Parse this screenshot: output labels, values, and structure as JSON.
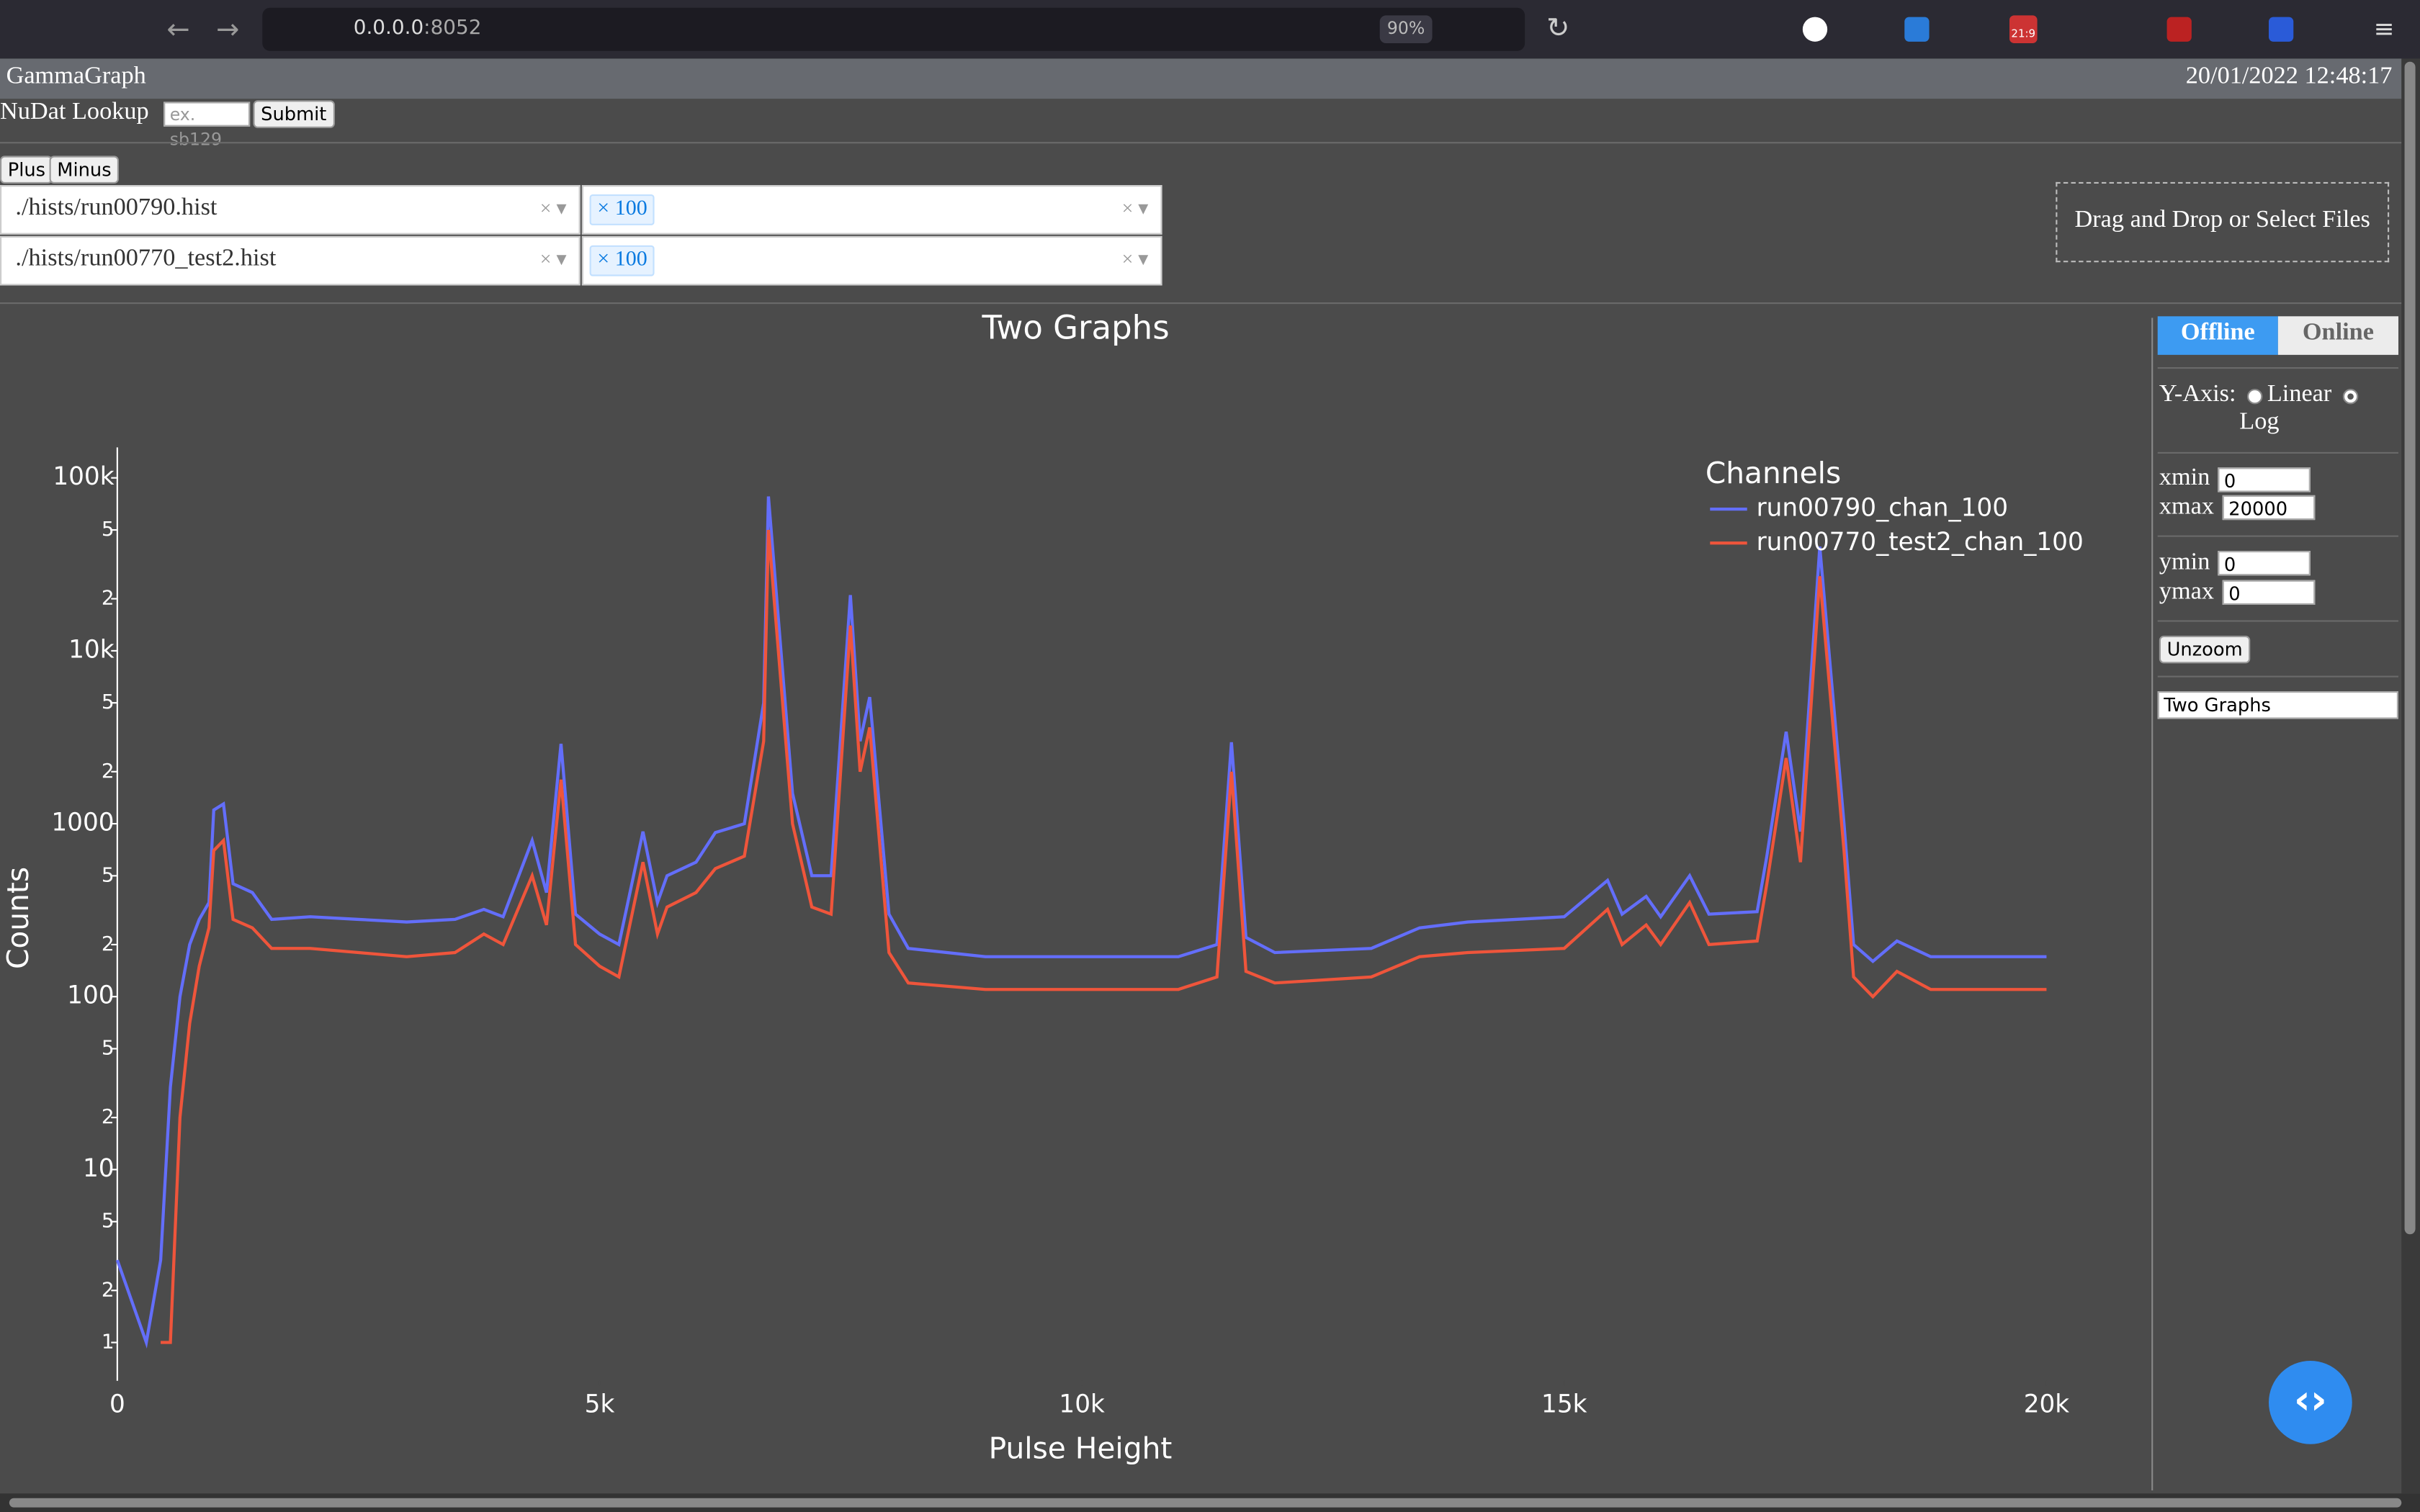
{
  "browser": {
    "url_host": "0.0.0.0",
    "url_port": ":8052",
    "zoom": "90%",
    "badge": "21:9"
  },
  "app": {
    "title": "GammaGraph",
    "datetime": "20/01/2022 12:48:17",
    "nudat_label": "NuDat Lookup",
    "nudat_placeholder": "ex. sb129",
    "submit": "Submit",
    "plus": "Plus",
    "minus": "Minus",
    "files": [
      {
        "path": "./hists/run00790.hist",
        "channel": "100"
      },
      {
        "path": "./hists/run00770_test2.hist",
        "channel": "100"
      }
    ],
    "dropzone": "Drag and Drop or Select Files"
  },
  "sidebar": {
    "tabs": [
      "Offline",
      "Online"
    ],
    "yaxis_label": "Y-Axis:",
    "yaxis_options": [
      "Linear",
      "Log"
    ],
    "xmin_label": "xmin",
    "xmin": "0",
    "xmax_label": "xmax",
    "xmax": "20000",
    "ymin_label": "ymin",
    "ymin": "0",
    "ymax_label": "ymax",
    "ymax": "0",
    "unzoom": "Unzoom",
    "graph_title": "Two Graphs"
  },
  "chart_data": {
    "type": "line",
    "title": "Two Graphs",
    "x_label": "Pulse Height",
    "y_label": "Counts",
    "log_y": true,
    "legend_title": "Channels",
    "legend_position": "top-right",
    "x": [
      0,
      300,
      450,
      550,
      650,
      750,
      850,
      950,
      1000,
      1100,
      1200,
      1400,
      1600,
      2000,
      2500,
      3000,
      3500,
      3800,
      4000,
      4300,
      4450,
      4600,
      4750,
      5000,
      5200,
      5450,
      5600,
      5700,
      6000,
      6200,
      6500,
      6700,
      6750,
      7000,
      7200,
      7400,
      7600,
      7700,
      7800,
      8000,
      8200,
      9000,
      10000,
      11000,
      11400,
      11550,
      11700,
      12000,
      13000,
      13500,
      14000,
      15000,
      15450,
      15600,
      15850,
      16000,
      16300,
      16500,
      17000,
      17100,
      17300,
      17450,
      17650,
      17900,
      18000,
      18200,
      18450,
      18800,
      19500,
      20000
    ],
    "series": [
      {
        "name": "run00790_chan_100",
        "color": "#636efa",
        "values": [
          3,
          1,
          3,
          30,
          100,
          200,
          280,
          350,
          1200,
          1300,
          450,
          400,
          280,
          290,
          280,
          270,
          280,
          320,
          290,
          800,
          400,
          2900,
          300,
          230,
          200,
          900,
          350,
          500,
          600,
          890,
          1000,
          5000,
          78000,
          1500,
          500,
          500,
          21000,
          3000,
          5400,
          300,
          190,
          170,
          170,
          170,
          200,
          2960,
          220,
          180,
          190,
          250,
          270,
          290,
          470,
          300,
          380,
          290,
          500,
          300,
          310,
          650,
          3400,
          900,
          40000,
          1000,
          200,
          160,
          210,
          170,
          170,
          170
        ]
      },
      {
        "name": "run00770_test2_chan_100",
        "color": "#ef553b",
        "values": [
          2,
          null,
          1,
          1,
          20,
          70,
          150,
          250,
          700,
          800,
          280,
          250,
          190,
          190,
          180,
          170,
          180,
          230,
          200,
          500,
          260,
          1800,
          200,
          150,
          130,
          600,
          230,
          330,
          400,
          550,
          650,
          3000,
          50000,
          1000,
          330,
          300,
          14000,
          2000,
          3600,
          180,
          120,
          110,
          110,
          110,
          130,
          2000,
          140,
          120,
          130,
          170,
          180,
          190,
          320,
          200,
          260,
          200,
          350,
          200,
          210,
          450,
          2400,
          600,
          27000,
          700,
          130,
          100,
          140,
          110,
          110,
          110
        ]
      }
    ],
    "xlim": [
      0,
      20000
    ],
    "xticks": [
      0,
      {
        "value": 5000,
        "label": "5k"
      },
      {
        "value": 10000,
        "label": "10k"
      },
      {
        "value": 15000,
        "label": "15k"
      },
      {
        "value": 20000,
        "label": "20k"
      }
    ],
    "ylim": [
      0.6,
      150000
    ],
    "yticks": [
      1,
      2,
      5,
      10,
      {
        "value": 20,
        "label": "2"
      },
      {
        "value": 50,
        "label": "5"
      },
      100,
      {
        "value": 200,
        "label": "2"
      },
      {
        "value": 500,
        "label": "5"
      },
      1000,
      {
        "value": 2000,
        "label": "2"
      },
      {
        "value": 5000,
        "label": "5"
      },
      {
        "value": 10000,
        "label": "10k"
      },
      {
        "value": 20000,
        "label": "2"
      },
      {
        "value": 50000,
        "label": "5"
      },
      {
        "value": 100000,
        "label": "100k"
      }
    ]
  }
}
